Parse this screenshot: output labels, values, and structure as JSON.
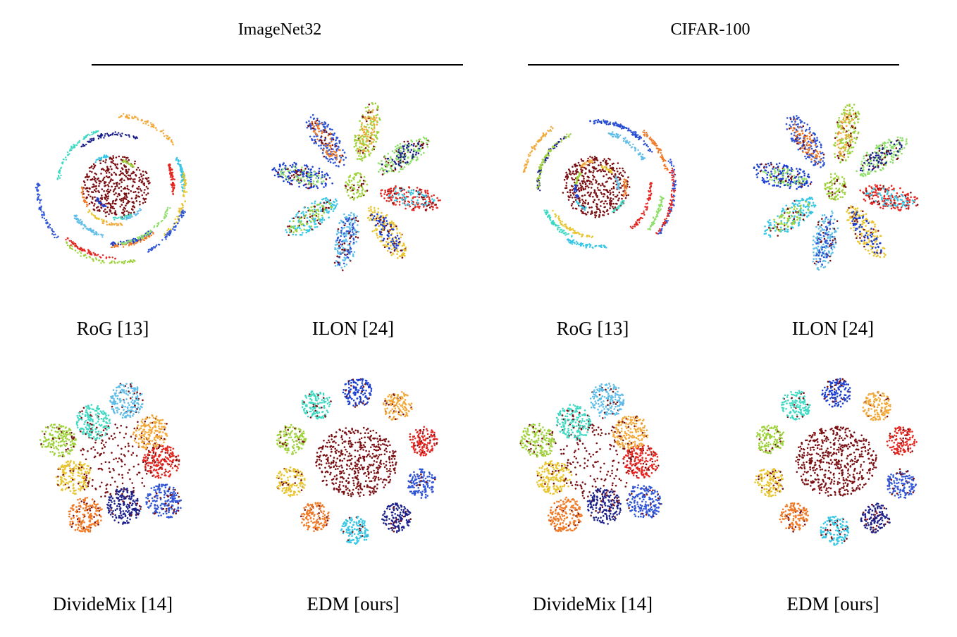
{
  "figure": {
    "groups": [
      {
        "title": "ImageNet32"
      },
      {
        "title": "CIFAR-100"
      }
    ],
    "panels": [
      {
        "label": "RoG [13]",
        "pattern": "noodle"
      },
      {
        "label": "ILON [24]",
        "pattern": "petal"
      },
      {
        "label": "RoG [13]",
        "pattern": "noodle"
      },
      {
        "label": "ILON [24]",
        "pattern": "petal"
      },
      {
        "label": "DivideMix [14]",
        "pattern": "blob"
      },
      {
        "label": "EDM [ours]",
        "pattern": "blob-center"
      },
      {
        "label": "DivideMix [14]",
        "pattern": "blob"
      },
      {
        "label": "EDM [ours]",
        "pattern": "blob-center"
      }
    ],
    "colors": {
      "noise_cluster": "#7a0f12",
      "palette": [
        "#e3261f",
        "#2f55d6",
        "#1b1f8a",
        "#36c6e6",
        "#f07a26",
        "#e8c52f",
        "#9fd23c",
        "#3fd9c3",
        "#1a3fd0",
        "#f2a93a",
        "#5fbde8",
        "#8fe06a"
      ]
    }
  }
}
